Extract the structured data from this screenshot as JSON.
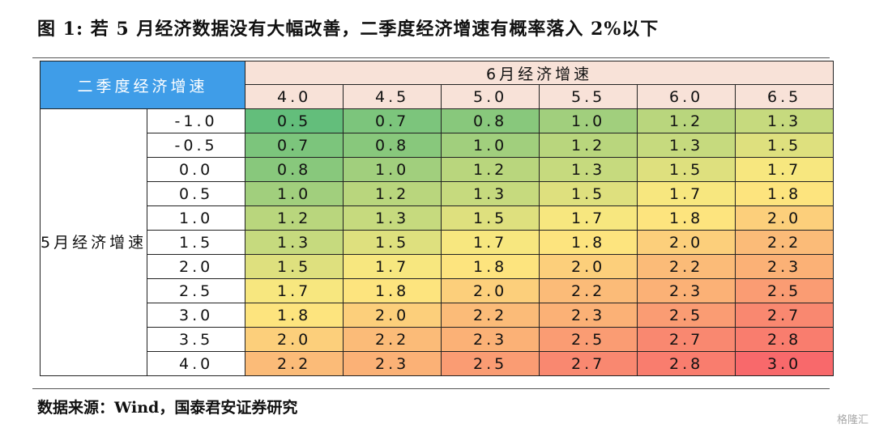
{
  "figure": {
    "title": "图 1:  若 5 月经济数据没有大幅改善，二季度经济增速有概率落入 2%以下",
    "source": "数据来源：Wind，国泰君安证券研究",
    "watermark": "格隆汇"
  },
  "chart_data": {
    "type": "heatmap",
    "title": "",
    "corner_label": "二季度经济增速",
    "xlabel": "6月经济增速",
    "ylabel": "5月经济增速",
    "x": [
      "4.0",
      "4.5",
      "5.0",
      "5.5",
      "6.0",
      "6.5"
    ],
    "y": [
      "-1.0",
      "-0.5",
      "0.0",
      "0.5",
      "1.0",
      "1.5",
      "2.0",
      "2.5",
      "3.0",
      "3.5",
      "4.0"
    ],
    "values": [
      [
        "0.5",
        "0.7",
        "0.8",
        "1.0",
        "1.2",
        "1.3"
      ],
      [
        "0.7",
        "0.8",
        "1.0",
        "1.2",
        "1.3",
        "1.5"
      ],
      [
        "0.8",
        "1.0",
        "1.2",
        "1.3",
        "1.5",
        "1.7"
      ],
      [
        "1.0",
        "1.2",
        "1.3",
        "1.5",
        "1.7",
        "1.8"
      ],
      [
        "1.2",
        "1.3",
        "1.5",
        "1.7",
        "1.8",
        "2.0"
      ],
      [
        "1.3",
        "1.5",
        "1.7",
        "1.8",
        "2.0",
        "2.2"
      ],
      [
        "1.5",
        "1.7",
        "1.8",
        "2.0",
        "2.2",
        "2.3"
      ],
      [
        "1.7",
        "1.8",
        "2.0",
        "2.2",
        "2.3",
        "2.5"
      ],
      [
        "1.8",
        "2.0",
        "2.2",
        "2.3",
        "2.5",
        "2.7"
      ],
      [
        "2.0",
        "2.2",
        "2.3",
        "2.5",
        "2.7",
        "2.8"
      ],
      [
        "2.2",
        "2.3",
        "2.5",
        "2.7",
        "2.8",
        "3.0"
      ]
    ],
    "color_scale": {
      "type": "green-yellow-red",
      "low": "#63be7b",
      "mid": "#fde97f",
      "high": "#f8696b",
      "range": [
        0.5,
        3.0
      ]
    },
    "colors": {
      "corner_fill": "#3f9de8",
      "header_fill": "#f8e2d8"
    }
  }
}
